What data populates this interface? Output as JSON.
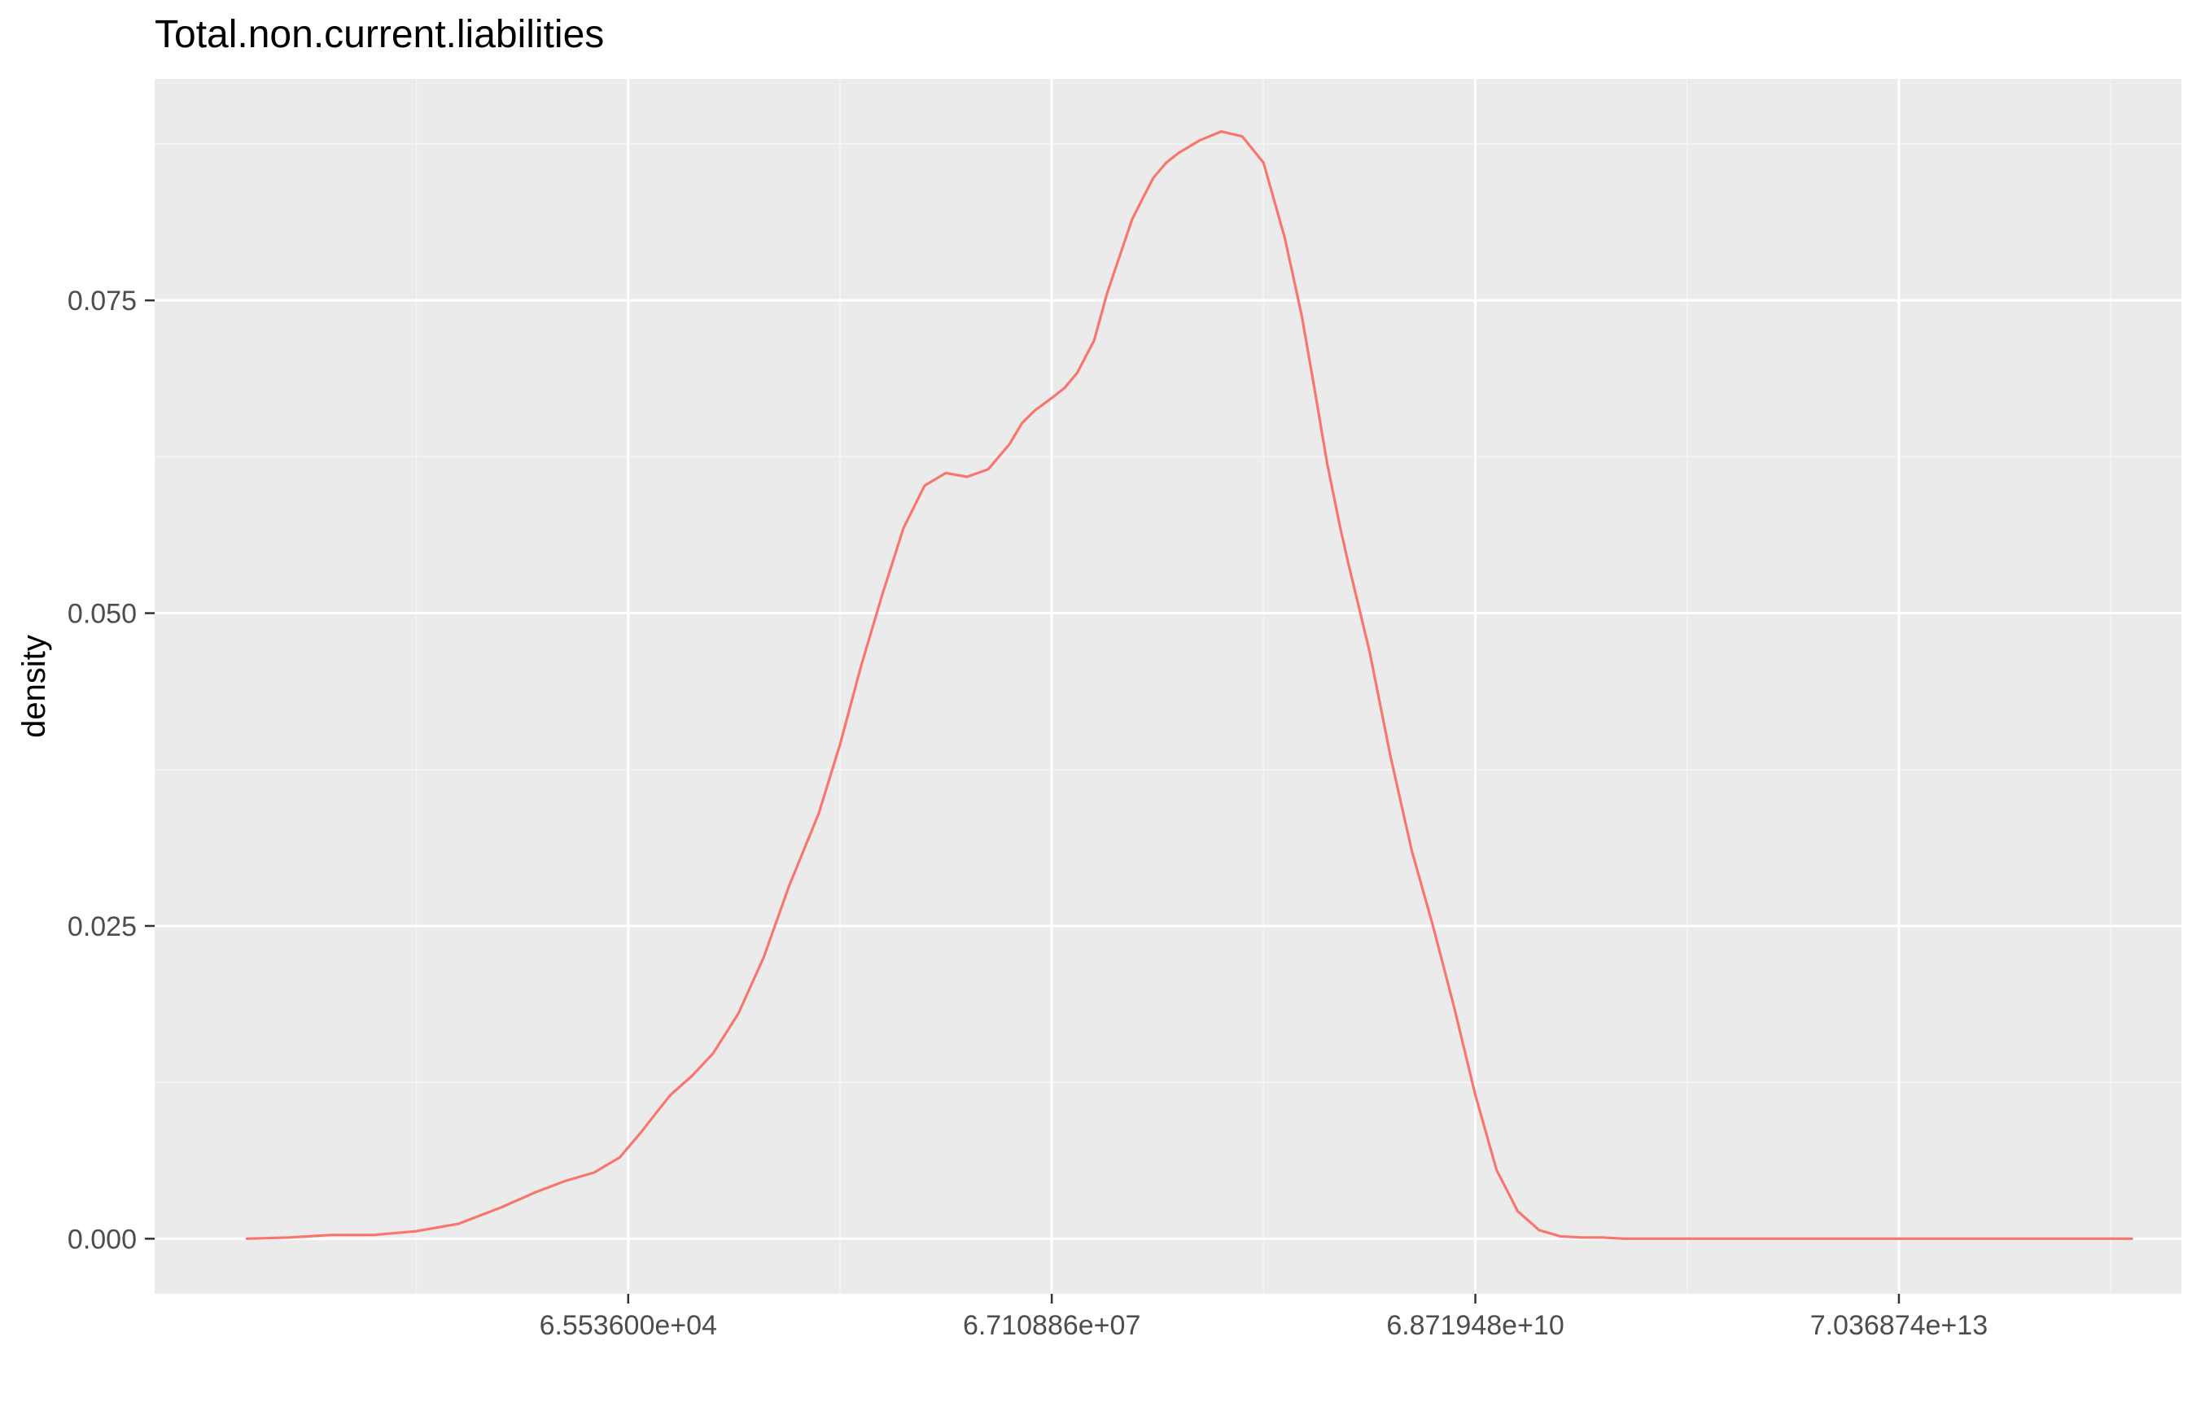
{
  "colors": {
    "panel_bg": "#EBEBEB",
    "grid_major": "#FFFFFF",
    "grid_minor": "#F5F5F5",
    "line": "#F8766D",
    "text": "#000000",
    "tick_text": "#4D4D4D",
    "tick_mark": "#333333"
  },
  "chart_data": {
    "type": "line",
    "title": "Total.non.current.liabilities",
    "xlabel": "",
    "ylabel": "density",
    "x_scale": "log2",
    "x_ticks": [
      65536,
      67108864,
      68719476736,
      70368744177664
    ],
    "x_tick_labels": [
      "6.553600e+04",
      "6.710886e+07",
      "6.871948e+10",
      "7.036874e+13"
    ],
    "x_minor_ticks": [
      2048,
      2097152,
      2147483648,
      2199023255552,
      2251799813685248
    ],
    "xlim": [
      4.82,
      52.67
    ],
    "y_ticks": [
      0,
      0.025,
      0.05,
      0.075
    ],
    "y_tick_labels": [
      "0.000",
      "0.025",
      "0.050",
      "0.075"
    ],
    "ylim": [
      -0.0044,
      0.0927
    ],
    "grid": true,
    "legend": "none",
    "series": [
      {
        "x": [
          7.0,
          8.0,
          9.0,
          10.0,
          11.0,
          12.0,
          13.0,
          13.8,
          14.5,
          15.2,
          15.8,
          16.3,
          16.6,
          17.0,
          17.5,
          18.0,
          18.6,
          19.2,
          19.8,
          20.5,
          21.0,
          21.5,
          22.0,
          22.5,
          23.0,
          23.5,
          24.0,
          24.5,
          25.0,
          25.3,
          25.6,
          26.0,
          26.3,
          26.6,
          27.0,
          27.3,
          27.6,
          27.9,
          28.2,
          28.4,
          28.7,
          29.0,
          29.5,
          30.0,
          30.5,
          31.0,
          31.5,
          31.9,
          32.2,
          32.5,
          32.8,
          33.0,
          33.5,
          34.0,
          34.5,
          35.0,
          35.5,
          36.0,
          36.5,
          37.0,
          37.5,
          38.0,
          38.5,
          39.0,
          39.5,
          40.0,
          41.0,
          42.0,
          43.0,
          44.0,
          45.0,
          46.0,
          47.0,
          48.0,
          49.0,
          50.0,
          51.0,
          51.5
        ],
        "y": [
          0.0,
          0.0001,
          0.0003,
          0.0003,
          0.0006,
          0.0012,
          0.0025,
          0.0037,
          0.0046,
          0.0053,
          0.0065,
          0.0085,
          0.0098,
          0.0115,
          0.013,
          0.0148,
          0.018,
          0.0225,
          0.0282,
          0.034,
          0.0395,
          0.0458,
          0.0515,
          0.0568,
          0.0602,
          0.0612,
          0.0609,
          0.0615,
          0.0635,
          0.0652,
          0.0662,
          0.0672,
          0.068,
          0.0692,
          0.0718,
          0.0755,
          0.0785,
          0.0815,
          0.0835,
          0.0848,
          0.086,
          0.0868,
          0.0878,
          0.0885,
          0.0881,
          0.086,
          0.08,
          0.0738,
          0.068,
          0.062,
          0.057,
          0.054,
          0.047,
          0.0385,
          0.031,
          0.025,
          0.0185,
          0.0115,
          0.0055,
          0.0022,
          0.0007,
          0.0002,
          0.0001,
          0.0001,
          0.0,
          0.0,
          0.0,
          0.0,
          0.0,
          0.0,
          0.0,
          0.0,
          0.0,
          0.0,
          0.0,
          0.0,
          0.0,
          0.0
        ]
      }
    ]
  }
}
